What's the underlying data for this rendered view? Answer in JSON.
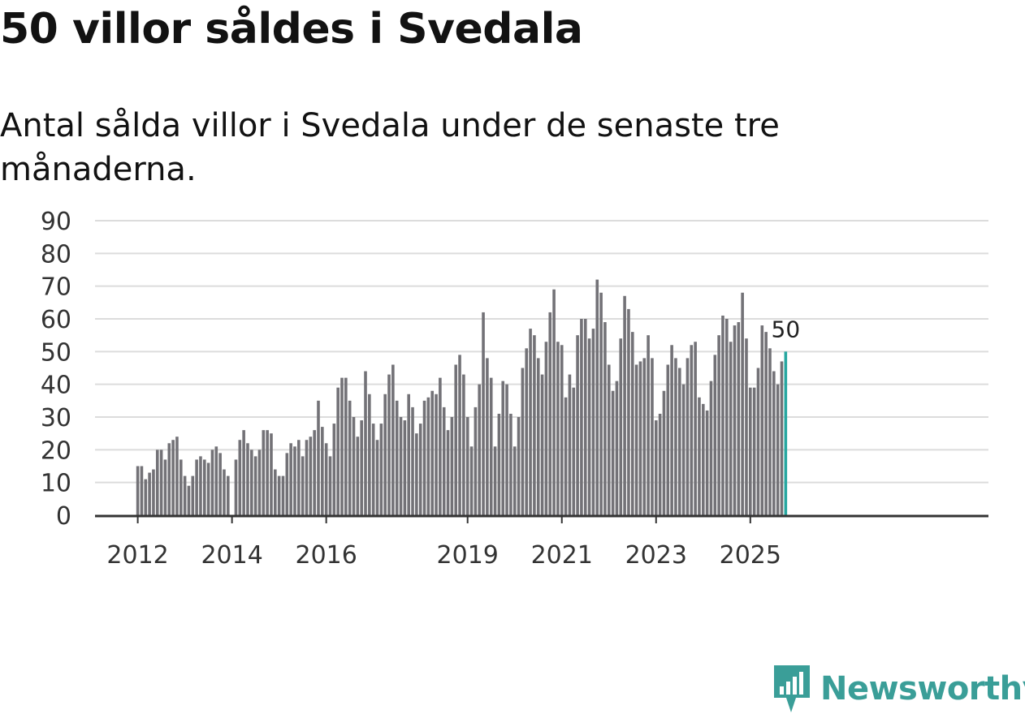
{
  "title": "50 villor såldes i Svedala",
  "subtitle": "Antal sålda villor i Svedala under de senaste tre månaderna.",
  "brand": "Newsworthy",
  "colors": {
    "bar": "#737277",
    "highlight": "#27a7a0",
    "grid": "#dcdcdc",
    "axis": "#333333",
    "brand": "#3a9e98"
  },
  "chart_data": {
    "type": "bar",
    "title": "50 villor såldes i Svedala",
    "xlabel": "",
    "ylabel": "",
    "ylim": [
      0,
      90
    ],
    "yticks": [
      0,
      10,
      20,
      30,
      40,
      50,
      60,
      70,
      80,
      90
    ],
    "grid": true,
    "x_ticks": [
      {
        "label": "2012",
        "index": 0
      },
      {
        "label": "2014",
        "index": 24
      },
      {
        "label": "2016",
        "index": 48
      },
      {
        "label": "2019",
        "index": 84
      },
      {
        "label": "2021",
        "index": 108
      },
      {
        "label": "2023",
        "index": 132
      },
      {
        "label": "2025",
        "index": 156
      }
    ],
    "highlight_label": "50",
    "values": [
      15,
      15,
      11,
      13,
      14,
      20,
      20,
      17,
      22,
      23,
      24,
      17,
      12,
      9,
      12,
      17,
      18,
      17,
      16,
      20,
      21,
      19,
      14,
      12,
      0,
      17,
      23,
      26,
      22,
      20,
      18,
      20,
      26,
      26,
      25,
      14,
      12,
      12,
      19,
      22,
      21,
      23,
      18,
      23,
      24,
      26,
      35,
      27,
      22,
      18,
      28,
      39,
      42,
      42,
      35,
      30,
      24,
      29,
      44,
      37,
      28,
      23,
      28,
      37,
      43,
      46,
      35,
      30,
      29,
      37,
      33,
      25,
      28,
      35,
      36,
      38,
      37,
      42,
      33,
      26,
      30,
      46,
      49,
      43,
      30,
      21,
      33,
      40,
      62,
      48,
      42,
      21,
      31,
      41,
      40,
      31,
      21,
      30,
      45,
      51,
      57,
      55,
      48,
      43,
      53,
      62,
      69,
      53,
      52,
      36,
      43,
      39,
      55,
      60,
      60,
      54,
      57,
      72,
      68,
      59,
      46,
      38,
      41,
      54,
      67,
      63,
      56,
      46,
      47,
      48,
      55,
      48,
      29,
      31,
      38,
      46,
      52,
      48,
      45,
      40,
      48,
      52,
      53,
      36,
      34,
      32,
      41,
      49,
      55,
      61,
      60,
      53,
      58,
      59,
      68,
      54,
      39,
      39,
      45,
      58,
      56,
      51,
      44,
      40,
      47,
      50
    ]
  }
}
